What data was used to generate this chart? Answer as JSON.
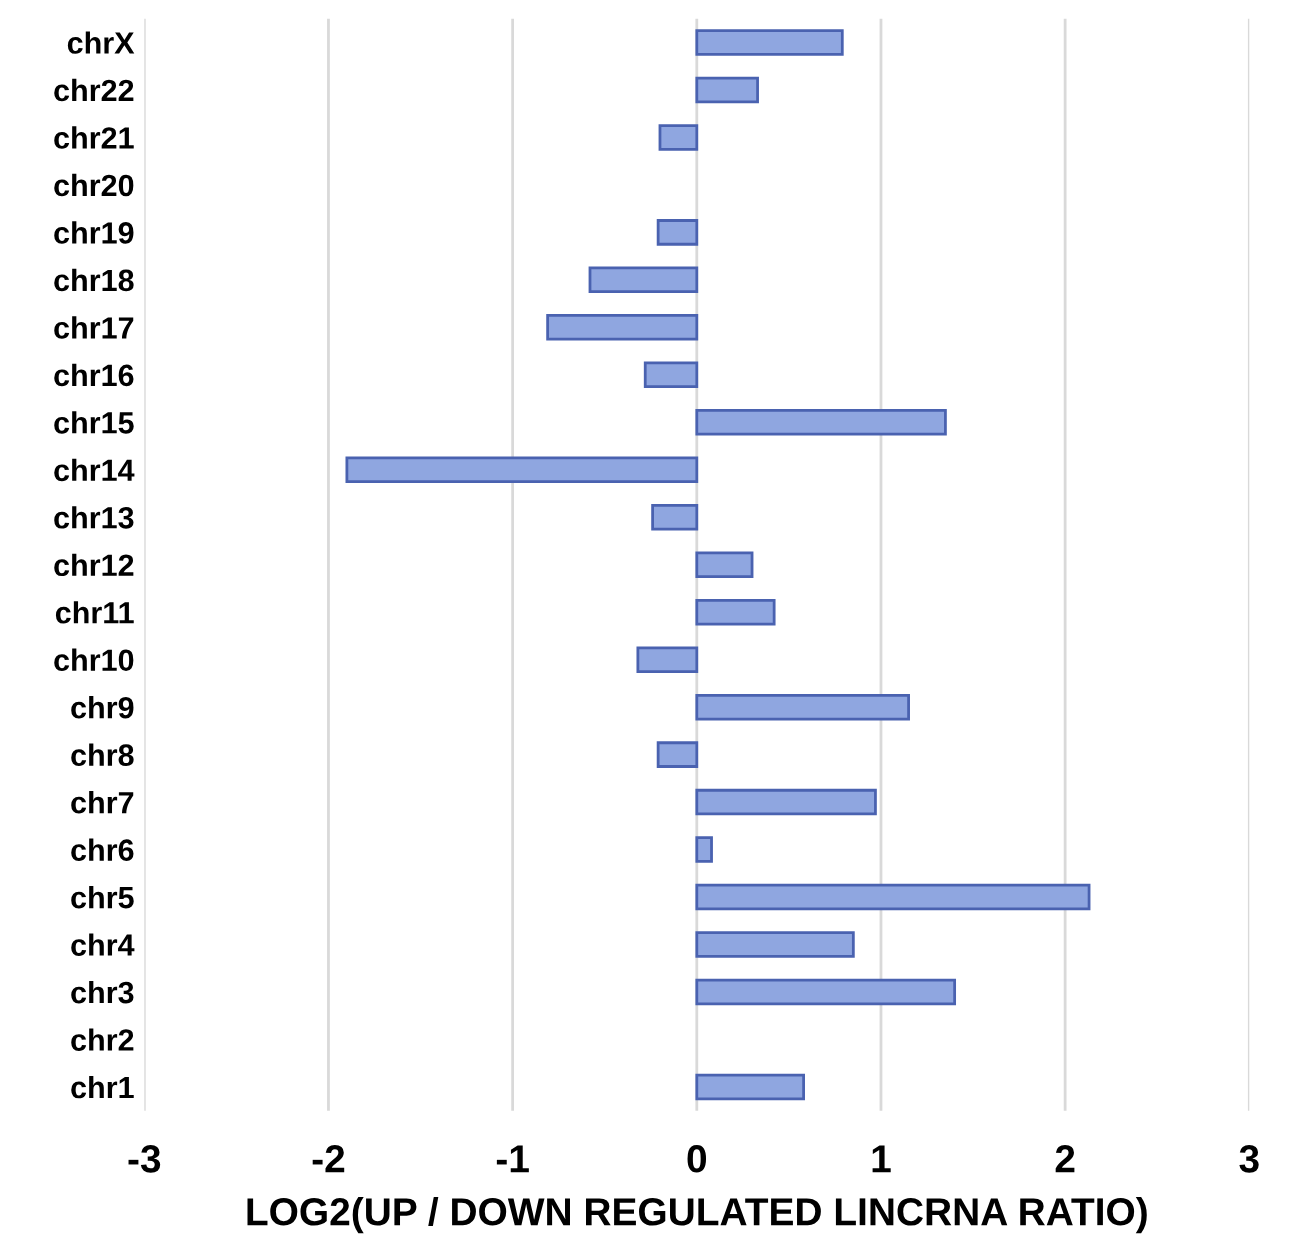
{
  "chart_data": {
    "type": "bar",
    "orientation": "horizontal",
    "xlabel": "LOG2(UP / DOWN REGULATED LINCRNA RATIO)",
    "categories": [
      "chrX",
      "chr22",
      "chr21",
      "chr20",
      "chr19",
      "chr18",
      "chr17",
      "chr16",
      "chr15",
      "chr14",
      "chr13",
      "chr12",
      "chr11",
      "chr10",
      "chr9",
      "chr8",
      "chr7",
      "chr6",
      "chr5",
      "chr4",
      "chr3",
      "chr2",
      "chr1"
    ],
    "values": [
      0.79,
      0.33,
      -0.2,
      null,
      -0.21,
      -0.58,
      -0.81,
      -0.28,
      1.35,
      -1.9,
      -0.24,
      0.3,
      0.42,
      -0.32,
      1.15,
      -0.21,
      0.97,
      0.08,
      2.13,
      0.85,
      1.4,
      null,
      0.58
    ],
    "color": "#8fa6e0",
    "xlim": [
      -3,
      3
    ],
    "xticks": [
      -3,
      -2,
      -1,
      0,
      1,
      2,
      3
    ],
    "grid": "x"
  }
}
